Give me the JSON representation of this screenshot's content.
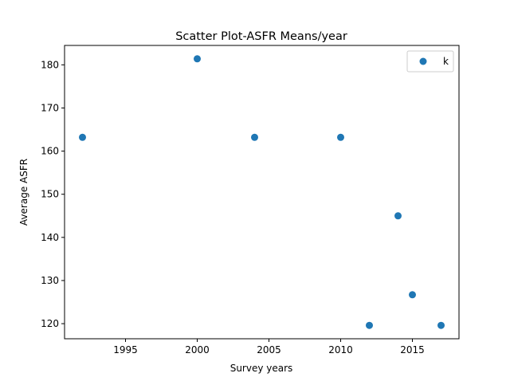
{
  "chart_data": {
    "type": "scatter",
    "title": "Scatter Plot-ASFR Means/year",
    "xlabel": "Survey years",
    "ylabel": "Average ASFR",
    "xlim": [
      1990.75,
      2018.25
    ],
    "ylim": [
      116.5,
      184.5
    ],
    "xticks": [
      1995,
      2000,
      2005,
      2010,
      2015
    ],
    "yticks": [
      120,
      130,
      140,
      150,
      160,
      170,
      180
    ],
    "series": [
      {
        "name": "k",
        "color": "#1f77b4",
        "points": [
          {
            "x": 1992,
            "y": 163.2
          },
          {
            "x": 2000,
            "y": 181.4
          },
          {
            "x": 2004,
            "y": 163.2
          },
          {
            "x": 2010,
            "y": 163.2
          },
          {
            "x": 2012,
            "y": 119.6
          },
          {
            "x": 2014,
            "y": 145.0
          },
          {
            "x": 2015,
            "y": 126.7
          },
          {
            "x": 2017,
            "y": 119.6
          }
        ]
      }
    ],
    "legend": {
      "position": "top-right",
      "entries": [
        "k"
      ]
    },
    "grid": false
  }
}
